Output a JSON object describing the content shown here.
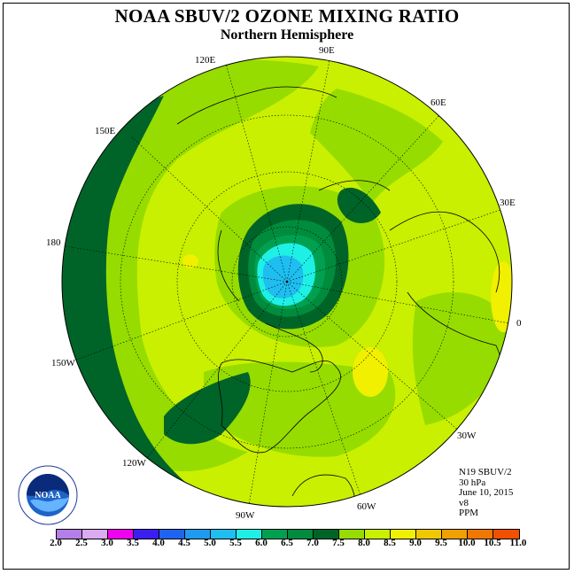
{
  "title": "NOAA SBUV/2 OZONE MIXING RATIO",
  "subtitle": "Northern Hemisphere",
  "longitude_labels": {
    "e90": "90E",
    "e120": "120E",
    "e60": "60E",
    "e150": "150E",
    "e30": "30E",
    "d180": "180",
    "d0": "0",
    "w150": "150W",
    "w30": "30W",
    "w120": "120W",
    "w60": "60W",
    "w90": "90W"
  },
  "info": {
    "instrument": "N19 SBUV/2",
    "level": "30 hPa",
    "date": "June 10, 2015",
    "version": "v8",
    "units": "PPM"
  },
  "colorbar": {
    "colors": [
      "#b57ee8",
      "#dcaaf0",
      "#f000f0",
      "#3c1ef0",
      "#1e64f0",
      "#1e9bf0",
      "#1ebef0",
      "#1ef0e6",
      "#00a050",
      "#008c3c",
      "#006428",
      "#96dc00",
      "#c8f000",
      "#f0f000",
      "#f0c800",
      "#f0a000",
      "#f07800",
      "#f05000",
      "#f00000",
      "#dc0000",
      "#8c5028"
    ],
    "ticks": [
      "2.0",
      "2.5",
      "3.0",
      "3.5",
      "4.0",
      "4.5",
      "5.0",
      "5.5",
      "6.0",
      "6.5",
      "7.0",
      "7.5",
      "8.0",
      "8.5",
      "9.0",
      "9.5",
      "10.0",
      "10.5",
      "11.0"
    ]
  },
  "map_colors": {
    "background": "#c8f000",
    "band_75": "#96dc00",
    "band_70": "#006428",
    "band_65": "#008c3c",
    "band_60": "#00a050",
    "band_55": "#1ef0e6",
    "band_50": "#1ebef0",
    "high_85": "#f0f000"
  },
  "logo": {
    "text": "NOAA",
    "ring_text": "NATIONAL OCEANIC AND ATMOSPHERIC ADMINISTRATION",
    "ring_text_bottom": "U.S. DEPARTMENT OF COMMERCE"
  }
}
